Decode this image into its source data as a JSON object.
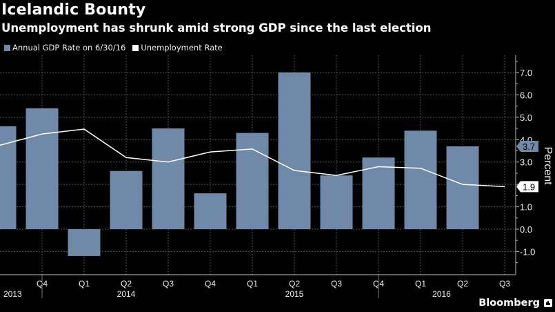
{
  "header": {
    "title": "Icelandic Bounty",
    "subtitle": "Unemployment has shrunk amid strong GDP since the last election"
  },
  "legend": [
    {
      "label": "Annual GDP Rate on 6/30/16",
      "color": "#7089a9"
    },
    {
      "label": "Unemployment Rate",
      "color": "#ffffff"
    }
  ],
  "footer": {
    "brand": "Bloomberg"
  },
  "chart_data": {
    "type": "bar",
    "title": "Icelandic Bounty",
    "subtitle": "Unemployment has shrunk amid strong GDP since the last election",
    "xlabel": "",
    "ylabel": "Percent",
    "ylim": [
      -1.5,
      7.8
    ],
    "yticks": [
      -1.0,
      0.0,
      1.0,
      2.0,
      3.0,
      4.0,
      5.0,
      6.0,
      7.0
    ],
    "ytick_labels": [
      "-1.0",
      "0.0",
      "1.0",
      "2.0",
      "3.0",
      "4.0",
      "5.0",
      "6.0",
      "7.0"
    ],
    "grid": true,
    "legend_position": "top-left",
    "categories": [
      "Q3 2013",
      "Q4 2013",
      "Q1 2014",
      "Q2 2014",
      "Q3 2014",
      "Q4 2014",
      "Q1 2015",
      "Q2 2015",
      "Q3 2015",
      "Q4 2015",
      "Q1 2016",
      "Q2 2016",
      "Q3 2016"
    ],
    "tick_labels": [
      "",
      "Q4",
      "Q1",
      "Q2",
      "Q3",
      "Q4",
      "Q1",
      "Q2",
      "Q3",
      "Q4",
      "Q1",
      "Q2",
      "Q3"
    ],
    "year_labels": [
      {
        "label": "2013",
        "at": 0.3
      },
      {
        "label": "2014",
        "at": 3
      },
      {
        "label": "2015",
        "at": 7
      },
      {
        "label": "2016",
        "at": 10.5
      }
    ],
    "year_dividers": [
      1,
      9
    ],
    "series": [
      {
        "name": "Annual GDP Rate on 6/30/16",
        "type": "bar",
        "color": "#7089a9",
        "values": [
          4.6,
          5.4,
          -1.2,
          2.6,
          4.5,
          1.6,
          4.3,
          7.0,
          2.4,
          3.2,
          4.4,
          3.7,
          null
        ]
      },
      {
        "name": "Unemployment Rate",
        "type": "line",
        "color": "#ffffff",
        "values": [
          3.75,
          4.25,
          4.47,
          3.2,
          3.0,
          3.45,
          3.58,
          2.62,
          2.4,
          2.79,
          2.72,
          2.0,
          1.9
        ]
      }
    ],
    "value_tags": [
      {
        "series": "Annual GDP Rate on 6/30/16",
        "value": 3.7,
        "label": "3.7"
      },
      {
        "series": "Unemployment Rate",
        "value": 1.9,
        "label": "1.9"
      }
    ]
  }
}
